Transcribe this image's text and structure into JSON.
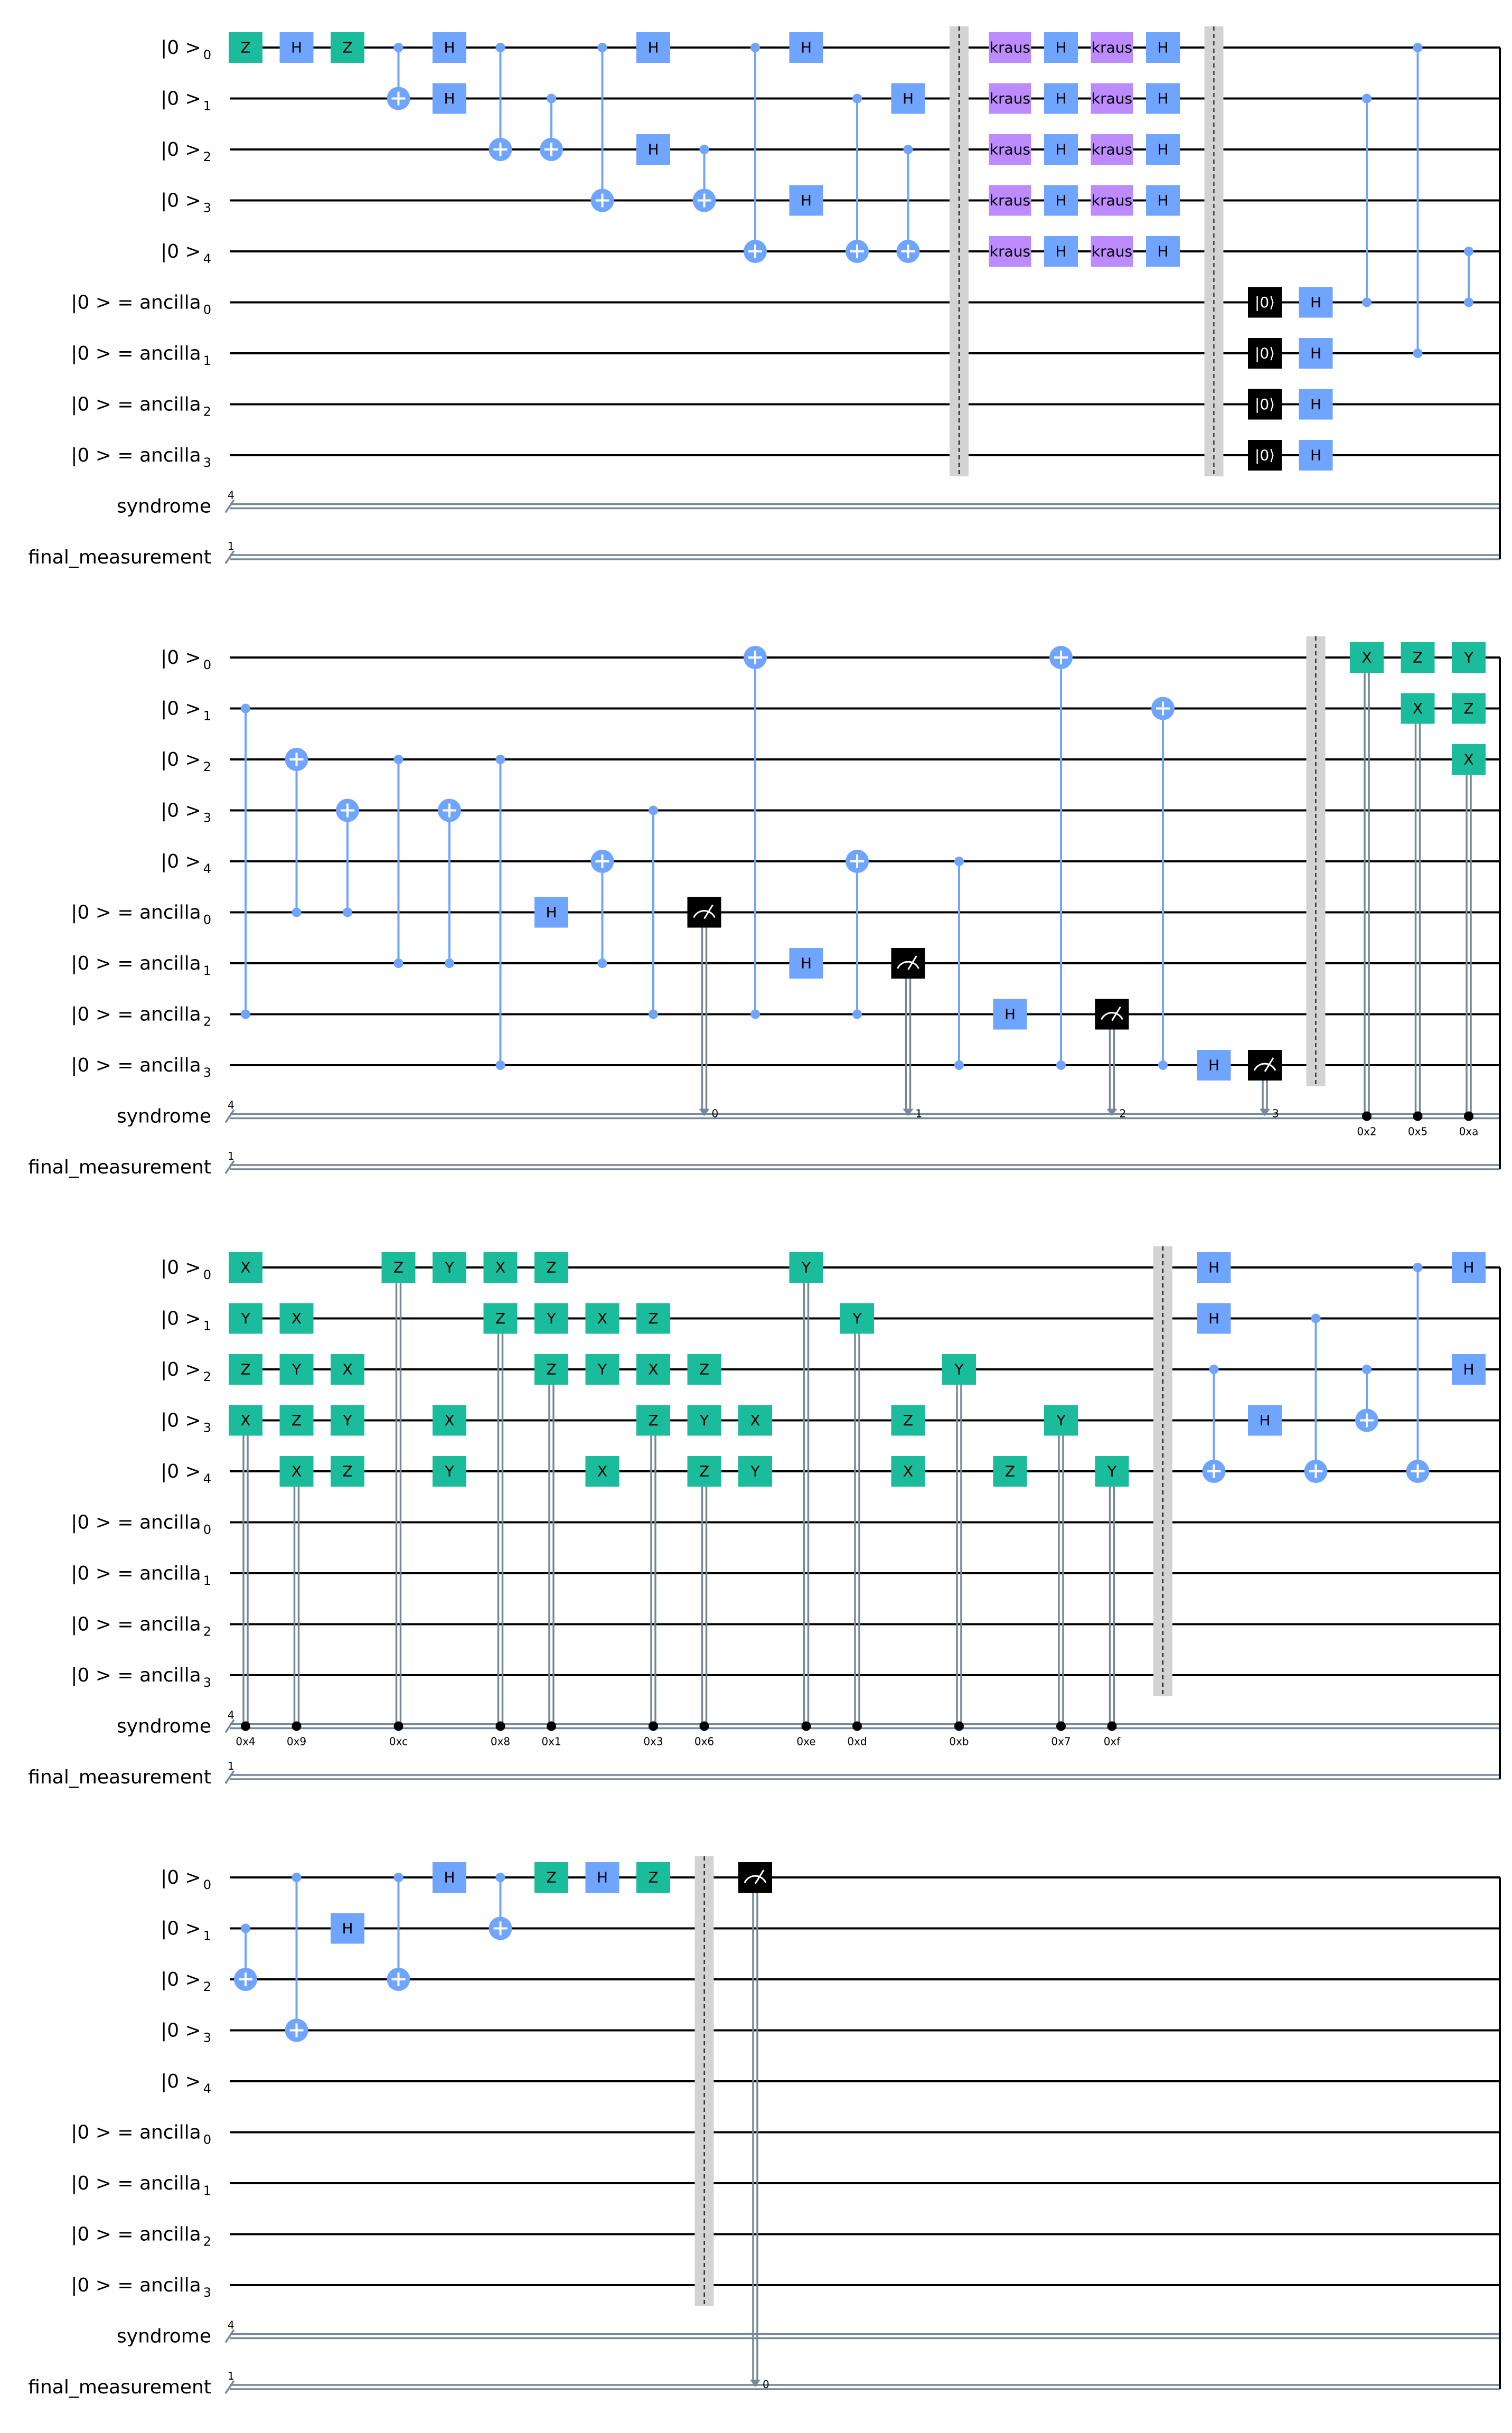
{
  "figure": {
    "labels": {
      "q0": "|0 >",
      "q0_sub": "0",
      "q1": "|0 >",
      "q1_sub": "1",
      "q2": "|0 >",
      "q2_sub": "2",
      "q3": "|0 >",
      "q3_sub": "3",
      "q4": "|0 >",
      "q4_sub": "4",
      "a0": "|0 >  = ancilla",
      "a0_sub": "0",
      "a1": "|0 >  = ancilla",
      "a1_sub": "1",
      "a2": "|0 >  = ancilla",
      "a2_sub": "2",
      "a3": "|0 >  = ancilla",
      "a3_sub": "3",
      "syndrome": "syndrome",
      "syndrome_width": "4",
      "final": "final_measurement",
      "final_width": "1"
    },
    "colors": {
      "pauli": "#1abc9c",
      "hadamard": "#6fa4ff",
      "kraus": "#bb8bff",
      "measure_reset": "#000000",
      "barrier": "#d3d3d3",
      "classical": "#778899"
    },
    "rows": [
      {
        "ops": [
          {
            "t": "g",
            "q": 0,
            "l": "Z",
            "c": "p"
          },
          {
            "t": "g",
            "q": 0,
            "l": "H",
            "c": "h"
          },
          {
            "t": "g",
            "q": 0,
            "l": "Z",
            "c": "p"
          },
          {
            "t": "cx",
            "c": 0,
            "x": 1
          },
          {
            "t": "par",
            "g": [
              {
                "q": 0,
                "l": "H",
                "c": "h"
              },
              {
                "q": 1,
                "l": "H",
                "c": "h"
              }
            ]
          },
          {
            "t": "cx",
            "c": 0,
            "x": 2
          },
          {
            "t": "cx",
            "c": 1,
            "x": 2
          },
          {
            "t": "cx",
            "c": 0,
            "x": 3
          },
          {
            "t": "par",
            "g": [
              {
                "q": 0,
                "l": "H",
                "c": "h"
              },
              {
                "q": 2,
                "l": "H",
                "c": "h"
              }
            ]
          },
          {
            "t": "cx",
            "c": 2,
            "x": 3
          },
          {
            "t": "cx",
            "c": 0,
            "x": 4
          },
          {
            "t": "par",
            "g": [
              {
                "q": 0,
                "l": "H",
                "c": "h"
              },
              {
                "q": 3,
                "l": "H",
                "c": "h"
              }
            ]
          },
          {
            "t": "cx",
            "c": 1,
            "x": 4
          },
          {
            "t": "par",
            "g": [
              {
                "q": 1,
                "l": "H",
                "c": "h"
              }
            ],
            "cx": [
              {
                "c": 2,
                "x": 4
              }
            ]
          },
          {
            "t": "barrier",
            "from": 0,
            "to": 8
          },
          {
            "t": "par",
            "g": [
              {
                "q": 0,
                "l": "kraus",
                "c": "k"
              },
              {
                "q": 1,
                "l": "kraus",
                "c": "k"
              },
              {
                "q": 2,
                "l": "kraus",
                "c": "k"
              },
              {
                "q": 3,
                "l": "kraus",
                "c": "k"
              },
              {
                "q": 4,
                "l": "kraus",
                "c": "k"
              }
            ]
          },
          {
            "t": "par",
            "g": [
              {
                "q": 0,
                "l": "H",
                "c": "h"
              },
              {
                "q": 1,
                "l": "H",
                "c": "h"
              },
              {
                "q": 2,
                "l": "H",
                "c": "h"
              },
              {
                "q": 3,
                "l": "H",
                "c": "h"
              },
              {
                "q": 4,
                "l": "H",
                "c": "h"
              }
            ]
          },
          {
            "t": "par",
            "g": [
              {
                "q": 0,
                "l": "kraus",
                "c": "k"
              },
              {
                "q": 1,
                "l": "kraus",
                "c": "k"
              },
              {
                "q": 2,
                "l": "kraus",
                "c": "k"
              },
              {
                "q": 3,
                "l": "kraus",
                "c": "k"
              },
              {
                "q": 4,
                "l": "kraus",
                "c": "k"
              }
            ]
          },
          {
            "t": "par",
            "g": [
              {
                "q": 0,
                "l": "H",
                "c": "h"
              },
              {
                "q": 1,
                "l": "H",
                "c": "h"
              },
              {
                "q": 2,
                "l": "H",
                "c": "h"
              },
              {
                "q": 3,
                "l": "H",
                "c": "h"
              },
              {
                "q": 4,
                "l": "H",
                "c": "h"
              }
            ]
          },
          {
            "t": "barrier",
            "from": 0,
            "to": 8
          },
          {
            "t": "par",
            "g": [
              {
                "q": 5,
                "l": "|0⟩",
                "c": "r"
              },
              {
                "q": 6,
                "l": "|0⟩",
                "c": "r"
              },
              {
                "q": 7,
                "l": "|0⟩",
                "c": "r"
              },
              {
                "q": 8,
                "l": "|0⟩",
                "c": "r"
              }
            ]
          },
          {
            "t": "par",
            "g": [
              {
                "q": 5,
                "l": "H",
                "c": "h"
              },
              {
                "q": 6,
                "l": "H",
                "c": "h"
              },
              {
                "q": 7,
                "l": "H",
                "c": "h"
              },
              {
                "q": 8,
                "l": "H",
                "c": "h"
              }
            ]
          },
          {
            "t": "cz",
            "a": 1,
            "b": 5
          },
          {
            "t": "cz",
            "a": 0,
            "b": 6
          },
          {
            "t": "cz",
            "a": 4,
            "b": 5
          }
        ]
      },
      {
        "ops": [
          {
            "t": "cz",
            "a": 1,
            "b": 7
          },
          {
            "t": "cx",
            "c": 5,
            "x": 2
          },
          {
            "t": "cx",
            "c": 5,
            "x": 3
          },
          {
            "t": "cz",
            "a": 2,
            "b": 6
          },
          {
            "t": "cx",
            "c": 6,
            "x": 3
          },
          {
            "t": "cz",
            "a": 2,
            "b": 8
          },
          {
            "t": "g",
            "q": 5,
            "l": "H",
            "c": "h"
          },
          {
            "t": "cx",
            "c": 6,
            "x": 4
          },
          {
            "t": "cz",
            "a": 3,
            "b": 7
          },
          {
            "t": "meas",
            "q": 5,
            "bit": "0"
          },
          {
            "t": "cx",
            "c": 7,
            "x": 0
          },
          {
            "t": "g",
            "q": 6,
            "l": "H",
            "c": "h"
          },
          {
            "t": "cx",
            "c": 7,
            "x": 4
          },
          {
            "t": "meas",
            "q": 6,
            "bit": "1"
          },
          {
            "t": "cz",
            "a": 4,
            "b": 8
          },
          {
            "t": "g",
            "q": 7,
            "l": "H",
            "c": "h"
          },
          {
            "t": "cx",
            "c": 8,
            "x": 0
          },
          {
            "t": "meas",
            "q": 7,
            "bit": "2"
          },
          {
            "t": "cx",
            "c": 8,
            "x": 1
          },
          {
            "t": "g",
            "q": 8,
            "l": "H",
            "c": "h"
          },
          {
            "t": "meas",
            "q": 8,
            "bit": "3"
          },
          {
            "t": "barrier",
            "from": 0,
            "to": 8
          },
          {
            "t": "cond",
            "g": [
              {
                "q": 0,
                "l": "X"
              }
            ],
            "v": "0x2"
          },
          {
            "t": "cond",
            "g": [
              {
                "q": 0,
                "l": "Z"
              },
              {
                "q": 1,
                "l": "X"
              }
            ],
            "v": "0x5"
          },
          {
            "t": "cond",
            "g": [
              {
                "q": 0,
                "l": "Y"
              },
              {
                "q": 1,
                "l": "Z"
              },
              {
                "q": 2,
                "l": "X"
              }
            ],
            "v": "0xa"
          }
        ]
      },
      {
        "ops": [
          {
            "t": "cond",
            "g": [
              {
                "q": 0,
                "l": "X"
              },
              {
                "q": 1,
                "l": "Y"
              },
              {
                "q": 2,
                "l": "Z"
              },
              {
                "q": 3,
                "l": "X"
              }
            ],
            "v": "0x4"
          },
          {
            "t": "cond",
            "g": [
              {
                "q": 1,
                "l": "X"
              },
              {
                "q": 2,
                "l": "Y"
              },
              {
                "q": 3,
                "l": "Z"
              },
              {
                "q": 4,
                "l": "X"
              }
            ],
            "v": "0x9"
          },
          {
            "t": "par",
            "g": [
              {
                "q": 2,
                "l": "X",
                "c": "p"
              },
              {
                "q": 3,
                "l": "Y",
                "c": "p"
              },
              {
                "q": 4,
                "l": "Z",
                "c": "p"
              }
            ]
          },
          {
            "t": "cond",
            "g": [
              {
                "q": 0,
                "l": "Z"
              }
            ],
            "v": "0xc"
          },
          {
            "t": "par",
            "g": [
              {
                "q": 0,
                "l": "Y",
                "c": "p"
              },
              {
                "q": 3,
                "l": "X",
                "c": "p"
              },
              {
                "q": 4,
                "l": "Y",
                "c": "p"
              }
            ]
          },
          {
            "t": "cond",
            "g": [
              {
                "q": 0,
                "l": "X"
              },
              {
                "q": 1,
                "l": "Z"
              }
            ],
            "v": "0x8"
          },
          {
            "t": "cond",
            "g": [
              {
                "q": 0,
                "l": "Z"
              },
              {
                "q": 1,
                "l": "Y"
              },
              {
                "q": 2,
                "l": "Z"
              }
            ],
            "v": "0x1"
          },
          {
            "t": "par",
            "g": [
              {
                "q": 1,
                "l": "X",
                "c": "p"
              },
              {
                "q": 2,
                "l": "Y",
                "c": "p"
              },
              {
                "q": 4,
                "l": "X",
                "c": "p"
              }
            ]
          },
          {
            "t": "cond",
            "g": [
              {
                "q": 1,
                "l": "Z"
              },
              {
                "q": 2,
                "l": "X"
              },
              {
                "q": 3,
                "l": "Z"
              }
            ],
            "v": "0x3"
          },
          {
            "t": "cond",
            "g": [
              {
                "q": 2,
                "l": "Z"
              },
              {
                "q": 3,
                "l": "Y"
              },
              {
                "q": 4,
                "l": "Z"
              }
            ],
            "v": "0x6"
          },
          {
            "t": "par",
            "g": [
              {
                "q": 3,
                "l": "X",
                "c": "p"
              },
              {
                "q": 4,
                "l": "Y",
                "c": "p"
              }
            ]
          },
          {
            "t": "cond",
            "g": [
              {
                "q": 0,
                "l": "Y"
              }
            ],
            "v": "0xe"
          },
          {
            "t": "cond",
            "g": [
              {
                "q": 1,
                "l": "Y"
              }
            ],
            "v": "0xd"
          },
          {
            "t": "par",
            "g": [
              {
                "q": 3,
                "l": "Z",
                "c": "p"
              },
              {
                "q": 4,
                "l": "X",
                "c": "p"
              }
            ]
          },
          {
            "t": "cond",
            "g": [
              {
                "q": 2,
                "l": "Y"
              }
            ],
            "v": "0xb"
          },
          {
            "t": "g",
            "q": 4,
            "l": "Z",
            "c": "p"
          },
          {
            "t": "cond",
            "g": [
              {
                "q": 3,
                "l": "Y"
              }
            ],
            "v": "0x7"
          },
          {
            "t": "cond",
            "g": [
              {
                "q": 4,
                "l": "Y"
              }
            ],
            "v": "0xf"
          },
          {
            "t": "barrier",
            "from": 0,
            "to": 8
          },
          {
            "t": "par",
            "g": [
              {
                "q": 0,
                "l": "H",
                "c": "h"
              },
              {
                "q": 1,
                "l": "H",
                "c": "h"
              }
            ],
            "cx": [
              {
                "c": 2,
                "x": 4
              }
            ]
          },
          {
            "t": "g",
            "q": 3,
            "l": "H",
            "c": "h"
          },
          {
            "t": "cx",
            "c": 1,
            "x": 4
          },
          {
            "t": "cx",
            "c": 2,
            "x": 3
          },
          {
            "t": "cx",
            "c": 0,
            "x": 4
          },
          {
            "t": "par",
            "g": [
              {
                "q": 0,
                "l": "H",
                "c": "h"
              },
              {
                "q": 2,
                "l": "H",
                "c": "h"
              }
            ]
          }
        ]
      },
      {
        "ops": [
          {
            "t": "cx",
            "c": 1,
            "x": 2
          },
          {
            "t": "cx",
            "c": 0,
            "x": 3
          },
          {
            "t": "g",
            "q": 1,
            "l": "H",
            "c": "h"
          },
          {
            "t": "cx",
            "c": 0,
            "x": 2
          },
          {
            "t": "g",
            "q": 0,
            "l": "H",
            "c": "h"
          },
          {
            "t": "cx",
            "c": 0,
            "x": 1
          },
          {
            "t": "g",
            "q": 0,
            "l": "Z",
            "c": "p"
          },
          {
            "t": "g",
            "q": 0,
            "l": "H",
            "c": "h"
          },
          {
            "t": "g",
            "q": 0,
            "l": "Z",
            "c": "p"
          },
          {
            "t": "barrier",
            "from": 0,
            "to": 8
          },
          {
            "t": "measfinal",
            "q": 0,
            "bit": "0"
          }
        ]
      }
    ]
  }
}
